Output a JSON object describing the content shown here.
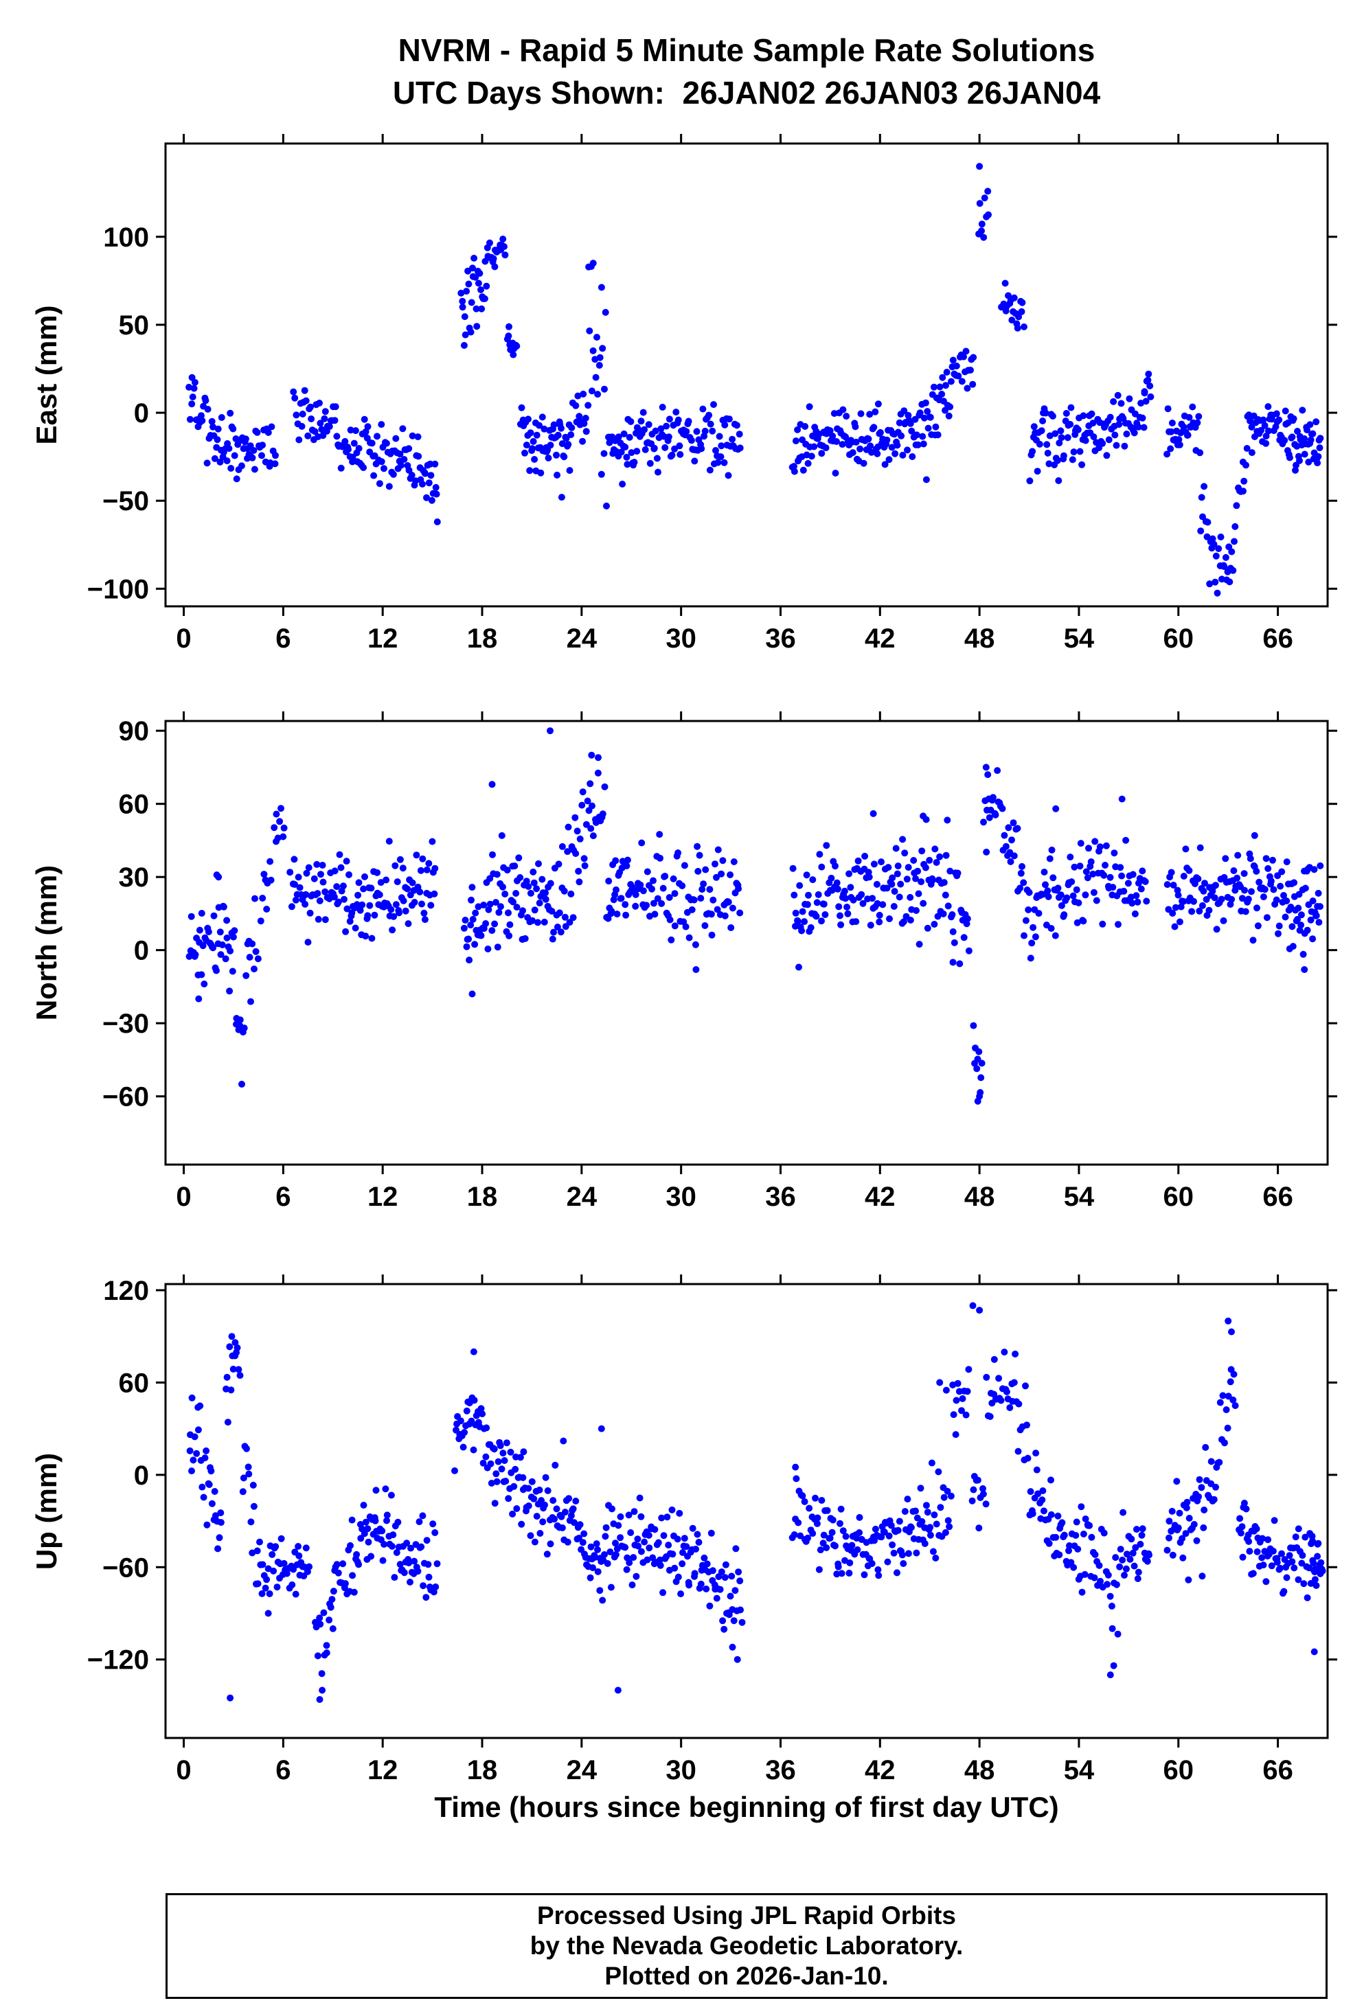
{
  "title": {
    "line1": "NVRM - Rapid 5 Minute Sample Rate Solutions",
    "line2": "UTC Days Shown:  26JAN02 26JAN03 26JAN04"
  },
  "xlabel": "Time (hours since beginning of first day UTC)",
  "footer": {
    "line1": "Processed Using JPL Rapid Orbits",
    "line2": "by the Nevada Geodetic Laboratory.",
    "line3": "Plotted on 2026-Jan-10."
  },
  "style": {
    "marker_color": "#0000ff",
    "frame_color": "#000000",
    "background": "#ffffff"
  },
  "chart_data": [
    {
      "id": "east",
      "type": "scatter",
      "ylabel": "East (mm)",
      "ylim": [
        -110,
        153
      ],
      "yticks": [
        -100,
        -50,
        0,
        50,
        100
      ],
      "xlim": [
        -1.1,
        69.0
      ],
      "xticks": [
        0,
        6,
        12,
        18,
        24,
        30,
        36,
        42,
        48,
        54,
        60,
        66
      ],
      "marker_color": "#0000ff",
      "encoding": "segments: [t_start_hr, t_end_hr, n_points, y_mean_start_mm, y_mean_end_mm, y_scatter_sd_mm]; outliers: [t_hr, y_mm]",
      "segments": [
        [
          0.3,
          1.3,
          14,
          5,
          -5,
          9
        ],
        [
          1.3,
          3.1,
          26,
          -15,
          -18,
          10
        ],
        [
          3.1,
          4.3,
          18,
          -25,
          -20,
          11
        ],
        [
          4.3,
          5.6,
          16,
          -14,
          -18,
          8
        ],
        [
          6.6,
          9.2,
          34,
          -3,
          -6,
          8
        ],
        [
          9.2,
          12.0,
          40,
          -12,
          -20,
          8
        ],
        [
          12.0,
          14.2,
          32,
          -22,
          -32,
          7
        ],
        [
          14.2,
          15.3,
          16,
          -35,
          -42,
          6
        ],
        [
          16.7,
          18.4,
          30,
          55,
          82,
          12
        ],
        [
          18.4,
          19.4,
          16,
          88,
          95,
          5
        ],
        [
          19.5,
          20.1,
          12,
          42,
          32,
          5
        ],
        [
          20.3,
          23.5,
          55,
          -17,
          -14,
          9
        ],
        [
          23.6,
          24.4,
          12,
          -8,
          -5,
          7
        ],
        [
          24.4,
          25.5,
          16,
          60,
          15,
          20
        ],
        [
          25.6,
          27.6,
          32,
          -22,
          -18,
          10
        ],
        [
          27.6,
          33.6,
          85,
          -16,
          -15,
          9
        ],
        [
          36.7,
          41.0,
          65,
          -18,
          -13,
          8
        ],
        [
          41.0,
          45.0,
          60,
          -13,
          -10,
          9
        ],
        [
          45.0,
          46.6,
          24,
          -2,
          20,
          10
        ],
        [
          46.6,
          47.7,
          14,
          20,
          27,
          7
        ],
        [
          47.9,
          48.6,
          9,
          100,
          113,
          7
        ],
        [
          49.3,
          50.7,
          20,
          68,
          48,
          6
        ],
        [
          51.0,
          54.6,
          52,
          -18,
          -13,
          10
        ],
        [
          54.6,
          58.0,
          48,
          -11,
          -6,
          9
        ],
        [
          57.9,
          58.4,
          6,
          12,
          20,
          5
        ],
        [
          59.3,
          61.3,
          32,
          -12,
          -10,
          8
        ],
        [
          61.3,
          62.2,
          12,
          -55,
          -85,
          10
        ],
        [
          62.2,
          63.4,
          18,
          -90,
          -82,
          8
        ],
        [
          63.4,
          64.1,
          8,
          -55,
          -40,
          8
        ],
        [
          64.1,
          66.6,
          38,
          -10,
          -8,
          8
        ],
        [
          66.6,
          68.6,
          42,
          -12,
          -24,
          9
        ]
      ],
      "outliers": [
        [
          0.5,
          20
        ],
        [
          15.3,
          -62
        ],
        [
          22.8,
          -48
        ],
        [
          25.5,
          -53
        ],
        [
          24.7,
          85
        ],
        [
          25.2,
          -35
        ],
        [
          41.9,
          5
        ],
        [
          44.8,
          -38
        ],
        [
          48.0,
          140
        ],
        [
          58.2,
          22
        ],
        [
          63.9,
          -28
        ]
      ]
    },
    {
      "id": "north",
      "type": "scatter",
      "ylabel": "North (mm)",
      "ylim": [
        -88,
        94
      ],
      "yticks": [
        -60,
        -30,
        0,
        30,
        60,
        90
      ],
      "xlim": [
        -1.1,
        69.0
      ],
      "xticks": [
        0,
        6,
        12,
        18,
        24,
        30,
        36,
        42,
        48,
        54,
        60,
        66
      ],
      "marker_color": "#0000ff",
      "encoding": "segments: [t_start_hr, t_end_hr, n_points, y_mean_start_mm, y_mean_end_mm, y_scatter_sd_mm]; outliers: [t_hr, y_mm]",
      "segments": [
        [
          0.3,
          1.6,
          20,
          0,
          2,
          8
        ],
        [
          1.6,
          3.1,
          24,
          6,
          10,
          12
        ],
        [
          3.1,
          3.7,
          8,
          -31,
          -33,
          3
        ],
        [
          3.7,
          4.5,
          10,
          -4,
          6,
          10
        ],
        [
          4.6,
          5.3,
          8,
          22,
          30,
          6
        ],
        [
          5.4,
          6.1,
          8,
          46,
          53,
          4
        ],
        [
          6.4,
          9.1,
          38,
          25,
          21,
          8
        ],
        [
          9.1,
          15.2,
          90,
          22,
          24,
          9
        ],
        [
          16.9,
          18.1,
          20,
          11,
          16,
          9
        ],
        [
          18.1,
          20.1,
          32,
          23,
          25,
          11
        ],
        [
          20.1,
          23.1,
          45,
          20,
          22,
          10
        ],
        [
          23.1,
          24.3,
          18,
          32,
          46,
          11
        ],
        [
          24.3,
          25.4,
          14,
          55,
          58,
          10
        ],
        [
          25.5,
          27.1,
          28,
          25,
          25,
          9
        ],
        [
          27.1,
          33.6,
          85,
          24,
          25,
          9
        ],
        [
          36.7,
          40.1,
          50,
          21,
          24,
          10
        ],
        [
          40.1,
          44.1,
          58,
          25,
          26,
          10
        ],
        [
          44.1,
          46.1,
          30,
          30,
          31,
          10
        ],
        [
          46.1,
          47.4,
          18,
          16,
          10,
          11
        ],
        [
          47.6,
          48.2,
          9,
          -42,
          -55,
          7
        ],
        [
          48.2,
          49.4,
          16,
          55,
          63,
          8
        ],
        [
          49.4,
          50.6,
          16,
          46,
          40,
          8
        ],
        [
          50.6,
          54.1,
          48,
          20,
          23,
          10
        ],
        [
          54.1,
          58.1,
          52,
          25,
          27,
          9
        ],
        [
          59.3,
          63.1,
          52,
          24,
          24,
          8
        ],
        [
          63.1,
          66.6,
          52,
          25,
          23,
          9
        ],
        [
          66.6,
          68.6,
          40,
          20,
          17,
          9
        ]
      ],
      "outliers": [
        [
          0.9,
          -20
        ],
        [
          2.1,
          30
        ],
        [
          3.5,
          -55
        ],
        [
          17.4,
          -18
        ],
        [
          18.6,
          68
        ],
        [
          22.1,
          90
        ],
        [
          24.6,
          80
        ],
        [
          25.0,
          79
        ],
        [
          30.9,
          -8
        ],
        [
          37.1,
          -7
        ],
        [
          41.6,
          56
        ],
        [
          44.6,
          55
        ],
        [
          46.4,
          -5
        ],
        [
          47.9,
          -62
        ],
        [
          48.0,
          -60
        ],
        [
          48.4,
          75
        ],
        [
          48.5,
          72
        ],
        [
          52.6,
          58
        ],
        [
          56.6,
          62
        ],
        [
          64.6,
          47
        ],
        [
          67.6,
          -8
        ]
      ]
    },
    {
      "id": "up",
      "type": "scatter",
      "ylabel": "Up (mm)",
      "ylim": [
        -171,
        124
      ],
      "yticks": [
        -120,
        -60,
        0,
        60,
        120
      ],
      "xlim": [
        -1.1,
        69.0
      ],
      "xticks": [
        0,
        6,
        12,
        18,
        24,
        30,
        36,
        42,
        48,
        54,
        60,
        66
      ],
      "marker_color": "#0000ff",
      "encoding": "segments: [t_start_hr, t_end_hr, n_points, y_mean_start_mm, y_mean_end_mm, y_scatter_sd_mm]; outliers: [t_hr, y_mm]",
      "segments": [
        [
          0.3,
          1.1,
          10,
          15,
          30,
          14
        ],
        [
          1.1,
          2.3,
          18,
          0,
          -35,
          14
        ],
        [
          2.5,
          3.4,
          12,
          55,
          75,
          12
        ],
        [
          3.5,
          4.3,
          10,
          15,
          -40,
          18
        ],
        [
          4.3,
          6.1,
          24,
          -70,
          -52,
          14
        ],
        [
          6.1,
          7.6,
          22,
          -60,
          -66,
          10
        ],
        [
          7.9,
          8.7,
          10,
          -95,
          -118,
          12
        ],
        [
          8.7,
          10.6,
          26,
          -72,
          -55,
          12
        ],
        [
          10.6,
          12.6,
          30,
          -45,
          -28,
          12
        ],
        [
          12.6,
          15.3,
          40,
          -52,
          -60,
          12
        ],
        [
          16.3,
          17.3,
          15,
          18,
          35,
          10
        ],
        [
          17.3,
          18.3,
          15,
          35,
          28,
          14
        ],
        [
          18.3,
          19.6,
          20,
          10,
          0,
          10
        ],
        [
          19.6,
          21.6,
          30,
          -5,
          -20,
          12
        ],
        [
          21.6,
          24.1,
          35,
          -20,
          -35,
          14
        ],
        [
          24.1,
          25.6,
          24,
          -45,
          -52,
          14
        ],
        [
          25.6,
          27.6,
          30,
          -40,
          -46,
          14
        ],
        [
          27.6,
          30.6,
          45,
          -45,
          -56,
          14
        ],
        [
          30.6,
          33.7,
          45,
          -60,
          -76,
          16
        ],
        [
          36.7,
          38.6,
          25,
          -20,
          -35,
          14
        ],
        [
          38.6,
          42.1,
          52,
          -45,
          -45,
          13
        ],
        [
          42.1,
          45.1,
          44,
          -36,
          -34,
          12
        ],
        [
          45.1,
          46.3,
          16,
          -25,
          -12,
          14
        ],
        [
          46.3,
          47.4,
          12,
          40,
          58,
          14
        ],
        [
          47.5,
          48.4,
          10,
          0,
          -15,
          18
        ],
        [
          48.4,
          49.6,
          14,
          45,
          63,
          11
        ],
        [
          49.6,
          50.9,
          14,
          40,
          25,
          14
        ],
        [
          50.9,
          52.4,
          20,
          0,
          -25,
          12
        ],
        [
          52.4,
          55.1,
          38,
          -45,
          -50,
          14
        ],
        [
          55.1,
          56.4,
          16,
          -62,
          -74,
          16
        ],
        [
          56.4,
          58.3,
          24,
          -55,
          -50,
          12
        ],
        [
          59.3,
          61.6,
          34,
          -35,
          -30,
          14
        ],
        [
          61.6,
          62.5,
          12,
          -15,
          -2,
          13
        ],
        [
          62.5,
          63.5,
          12,
          40,
          70,
          16
        ],
        [
          63.6,
          65.1,
          24,
          -35,
          -45,
          12
        ],
        [
          65.1,
          68.1,
          42,
          -50,
          -55,
          13
        ],
        [
          68.0,
          68.7,
          18,
          -55,
          -58,
          11
        ]
      ],
      "outliers": [
        [
          0.5,
          50
        ],
        [
          2.8,
          -145
        ],
        [
          2.9,
          90
        ],
        [
          3.1,
          86
        ],
        [
          5.1,
          -90
        ],
        [
          8.2,
          -146
        ],
        [
          8.35,
          -140
        ],
        [
          9.0,
          -100
        ],
        [
          11.6,
          -10
        ],
        [
          17.5,
          80
        ],
        [
          20.5,
          15
        ],
        [
          22.9,
          22
        ],
        [
          25.2,
          30
        ],
        [
          26.2,
          -140
        ],
        [
          33.1,
          -112
        ],
        [
          33.4,
          -120
        ],
        [
          36.9,
          5
        ],
        [
          45.6,
          60
        ],
        [
          46.0,
          55
        ],
        [
          47.6,
          110
        ],
        [
          48.0,
          107
        ],
        [
          48.9,
          75
        ],
        [
          50.1,
          60
        ],
        [
          55.9,
          -130
        ],
        [
          56.1,
          -124
        ],
        [
          63.0,
          100
        ],
        [
          63.2,
          93
        ],
        [
          68.2,
          -115
        ]
      ]
    }
  ]
}
